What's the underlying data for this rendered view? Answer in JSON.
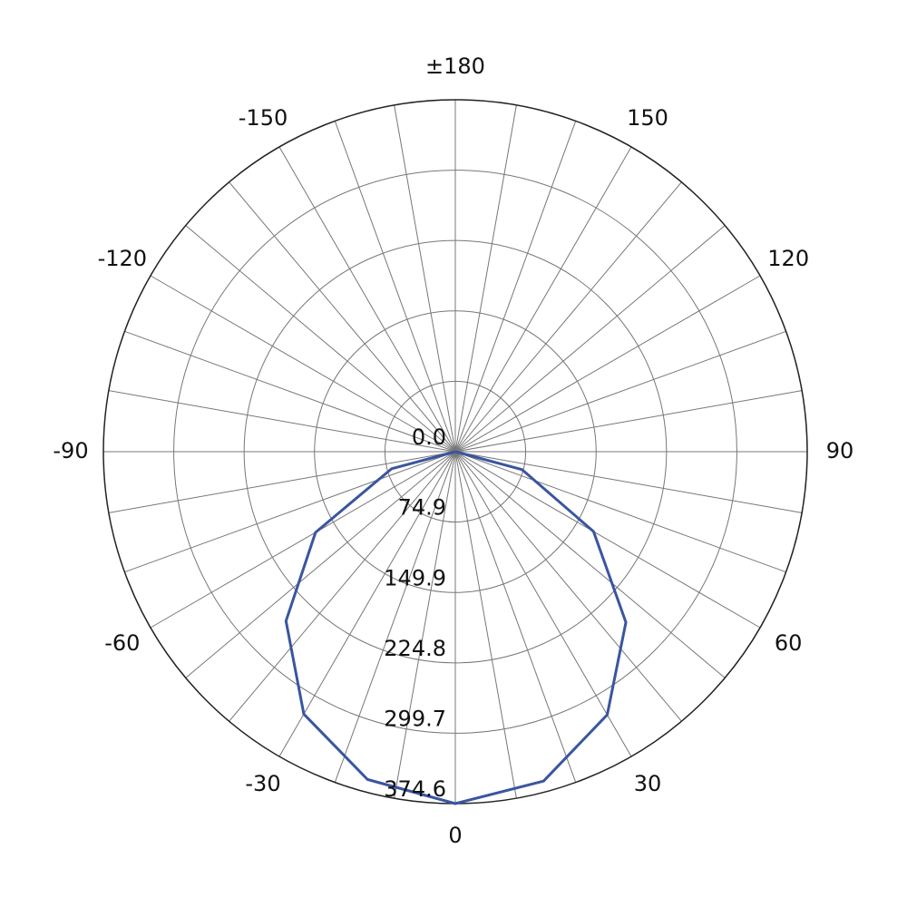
{
  "chart_data": {
    "type": "polar",
    "theta": [
      -90,
      -75,
      -60,
      -45,
      -30,
      -15,
      0,
      15,
      30,
      45,
      60,
      75,
      90
    ],
    "series": [
      {
        "color": "#3a55a0",
        "values": [
          0,
          70.3,
          171.8,
          254.9,
          322.5,
          361.2,
          374.6,
          363,
          323.4,
          256.8,
          169.9,
          73.4,
          0
        ]
      }
    ],
    "rlim": [
      0,
      374.6
    ],
    "rticks": [
      {
        "value": 0,
        "label": "0.0"
      },
      74.9,
      149.9,
      224.8,
      299.7,
      374.6
    ],
    "thetaticks": [
      0,
      30,
      60,
      90,
      120,
      150,
      {
        "value": 180,
        "label": "±180"
      },
      -150,
      -120,
      -90,
      -60,
      -30
    ],
    "angular_grid_step": 10,
    "grid": true
  }
}
